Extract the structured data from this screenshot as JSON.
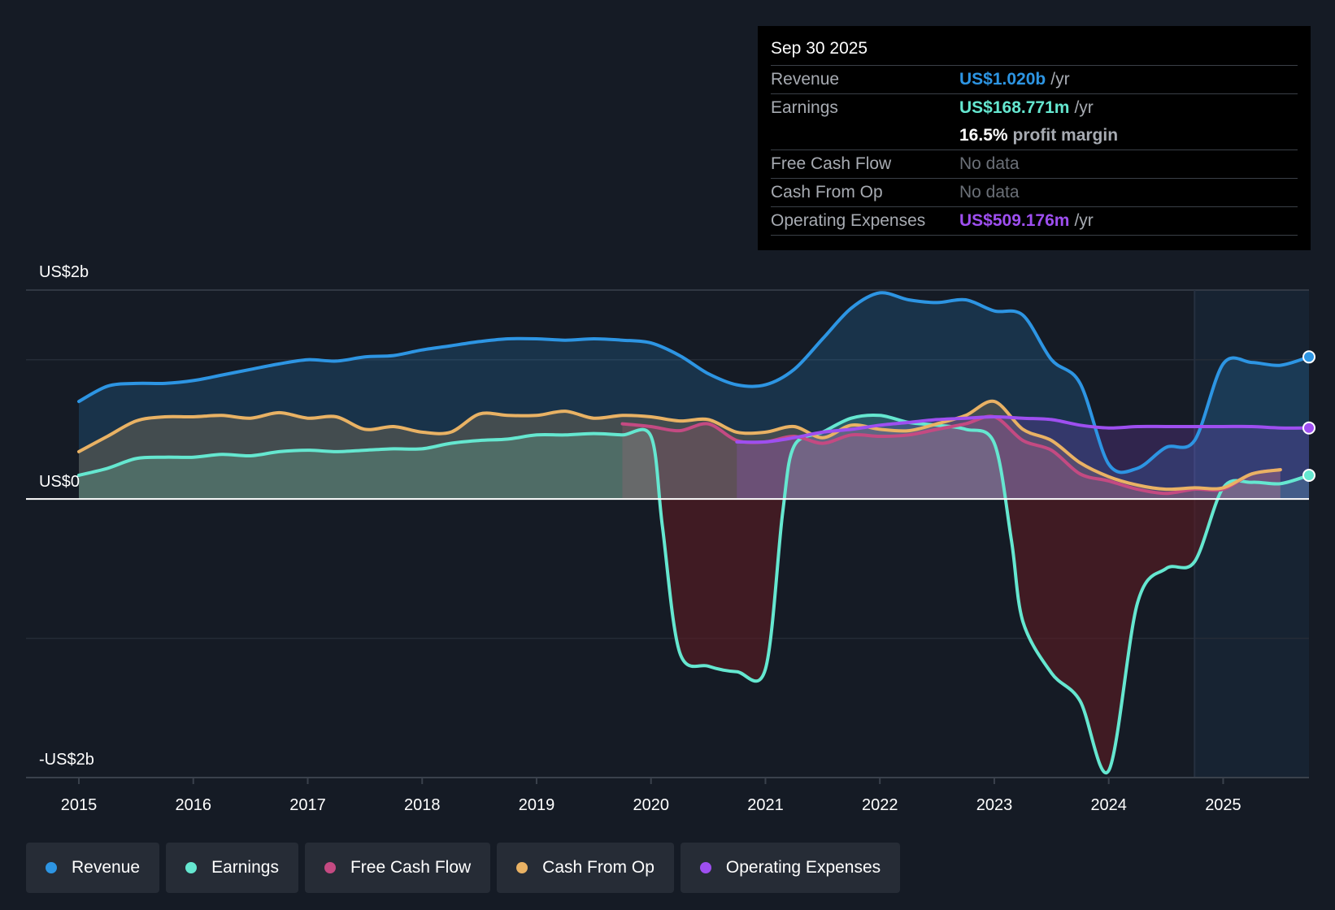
{
  "chart_data": {
    "type": "area",
    "title": "",
    "y_axis": {
      "top_label": "US$2b",
      "zero_label": "US$0",
      "bottom_label": "-US$2b",
      "ylim": [
        -2.0,
        1.5
      ]
    },
    "x_ticks": [
      "2015",
      "2016",
      "2017",
      "2018",
      "2019",
      "2020",
      "2021",
      "2022",
      "2023",
      "2024",
      "2025"
    ],
    "xlim": [
      2015.0,
      2025.75
    ],
    "forecast_start": 2024.75,
    "series": [
      {
        "name": "Revenue",
        "color": "#2d95e3",
        "fill": true,
        "points": [
          [
            2015,
            0.7
          ],
          [
            2015.25,
            0.81
          ],
          [
            2015.5,
            0.83
          ],
          [
            2015.75,
            0.83
          ],
          [
            2016,
            0.85
          ],
          [
            2016.25,
            0.89
          ],
          [
            2016.5,
            0.93
          ],
          [
            2016.75,
            0.97
          ],
          [
            2017,
            1.0
          ],
          [
            2017.25,
            0.99
          ],
          [
            2017.5,
            1.02
          ],
          [
            2017.75,
            1.03
          ],
          [
            2018,
            1.07
          ],
          [
            2018.25,
            1.1
          ],
          [
            2018.5,
            1.13
          ],
          [
            2018.75,
            1.15
          ],
          [
            2019,
            1.15
          ],
          [
            2019.25,
            1.14
          ],
          [
            2019.5,
            1.15
          ],
          [
            2019.75,
            1.14
          ],
          [
            2020,
            1.12
          ],
          [
            2020.25,
            1.03
          ],
          [
            2020.5,
            0.9
          ],
          [
            2020.75,
            0.82
          ],
          [
            2021,
            0.82
          ],
          [
            2021.25,
            0.93
          ],
          [
            2021.5,
            1.15
          ],
          [
            2021.75,
            1.37
          ],
          [
            2022,
            1.48
          ],
          [
            2022.25,
            1.43
          ],
          [
            2022.5,
            1.41
          ],
          [
            2022.75,
            1.43
          ],
          [
            2023,
            1.35
          ],
          [
            2023.25,
            1.32
          ],
          [
            2023.5,
            1.0
          ],
          [
            2023.75,
            0.83
          ],
          [
            2024,
            0.25
          ],
          [
            2024.25,
            0.22
          ],
          [
            2024.5,
            0.37
          ],
          [
            2024.75,
            0.42
          ],
          [
            2025,
            0.97
          ],
          [
            2025.25,
            0.98
          ],
          [
            2025.5,
            0.96
          ],
          [
            2025.75,
            1.02
          ]
        ]
      },
      {
        "name": "Earnings",
        "color": "#65e7d0",
        "fill": true,
        "points": [
          [
            2015,
            0.17
          ],
          [
            2015.25,
            0.22
          ],
          [
            2015.5,
            0.29
          ],
          [
            2015.75,
            0.3
          ],
          [
            2016,
            0.3
          ],
          [
            2016.25,
            0.32
          ],
          [
            2016.5,
            0.31
          ],
          [
            2016.75,
            0.34
          ],
          [
            2017,
            0.35
          ],
          [
            2017.25,
            0.34
          ],
          [
            2017.5,
            0.35
          ],
          [
            2017.75,
            0.36
          ],
          [
            2018,
            0.36
          ],
          [
            2018.25,
            0.4
          ],
          [
            2018.5,
            0.42
          ],
          [
            2018.75,
            0.43
          ],
          [
            2019,
            0.46
          ],
          [
            2019.25,
            0.46
          ],
          [
            2019.5,
            0.47
          ],
          [
            2019.75,
            0.46
          ],
          [
            2020,
            0.45
          ],
          [
            2020.1,
            -0.2
          ],
          [
            2020.25,
            -1.1
          ],
          [
            2020.5,
            -1.2
          ],
          [
            2020.75,
            -1.24
          ],
          [
            2021,
            -1.22
          ],
          [
            2021.15,
            -0.1
          ],
          [
            2021.25,
            0.38
          ],
          [
            2021.5,
            0.48
          ],
          [
            2021.75,
            0.58
          ],
          [
            2022,
            0.6
          ],
          [
            2022.25,
            0.55
          ],
          [
            2022.5,
            0.53
          ],
          [
            2022.75,
            0.5
          ],
          [
            2023,
            0.4
          ],
          [
            2023.15,
            -0.3
          ],
          [
            2023.25,
            -0.88
          ],
          [
            2023.5,
            -1.25
          ],
          [
            2023.75,
            -1.45
          ],
          [
            2024,
            -1.95
          ],
          [
            2024.25,
            -0.75
          ],
          [
            2024.5,
            -0.5
          ],
          [
            2024.75,
            -0.45
          ],
          [
            2025,
            0.08
          ],
          [
            2025.25,
            0.12
          ],
          [
            2025.5,
            0.11
          ],
          [
            2025.75,
            0.17
          ]
        ]
      },
      {
        "name": "Free Cash Flow",
        "color": "#c44a82",
        "fill": true,
        "points": [
          [
            2019.75,
            0.54
          ],
          [
            2020,
            0.52
          ],
          [
            2020.25,
            0.49
          ],
          [
            2020.5,
            0.54
          ],
          [
            2020.75,
            0.42
          ],
          [
            2021,
            0.41
          ],
          [
            2021.25,
            0.45
          ],
          [
            2021.5,
            0.4
          ],
          [
            2021.75,
            0.46
          ],
          [
            2022,
            0.45
          ],
          [
            2022.25,
            0.46
          ],
          [
            2022.5,
            0.5
          ],
          [
            2022.75,
            0.54
          ],
          [
            2023,
            0.59
          ],
          [
            2023.25,
            0.42
          ],
          [
            2023.5,
            0.35
          ],
          [
            2023.75,
            0.18
          ],
          [
            2024,
            0.13
          ],
          [
            2024.25,
            0.07
          ],
          [
            2024.5,
            0.04
          ],
          [
            2024.75,
            0.07
          ],
          [
            2025,
            0.07
          ],
          [
            2025.25,
            0.18
          ],
          [
            2025.5,
            0.21
          ]
        ]
      },
      {
        "name": "Cash From Op",
        "color": "#e9b264",
        "fill": true,
        "points": [
          [
            2015,
            0.34
          ],
          [
            2015.25,
            0.45
          ],
          [
            2015.5,
            0.56
          ],
          [
            2015.75,
            0.59
          ],
          [
            2016,
            0.59
          ],
          [
            2016.25,
            0.6
          ],
          [
            2016.5,
            0.58
          ],
          [
            2016.75,
            0.62
          ],
          [
            2017,
            0.58
          ],
          [
            2017.25,
            0.59
          ],
          [
            2017.5,
            0.5
          ],
          [
            2017.75,
            0.52
          ],
          [
            2018,
            0.48
          ],
          [
            2018.25,
            0.48
          ],
          [
            2018.5,
            0.61
          ],
          [
            2018.75,
            0.6
          ],
          [
            2019,
            0.6
          ],
          [
            2019.25,
            0.63
          ],
          [
            2019.5,
            0.58
          ],
          [
            2019.75,
            0.6
          ],
          [
            2020,
            0.59
          ],
          [
            2020.25,
            0.56
          ],
          [
            2020.5,
            0.57
          ],
          [
            2020.75,
            0.48
          ],
          [
            2021,
            0.48
          ],
          [
            2021.25,
            0.52
          ],
          [
            2021.5,
            0.44
          ],
          [
            2021.75,
            0.53
          ],
          [
            2022,
            0.5
          ],
          [
            2022.25,
            0.49
          ],
          [
            2022.5,
            0.54
          ],
          [
            2022.75,
            0.6
          ],
          [
            2023,
            0.7
          ],
          [
            2023.25,
            0.5
          ],
          [
            2023.5,
            0.42
          ],
          [
            2023.75,
            0.26
          ],
          [
            2024,
            0.16
          ],
          [
            2024.25,
            0.1
          ],
          [
            2024.5,
            0.07
          ],
          [
            2024.75,
            0.08
          ],
          [
            2025,
            0.08
          ],
          [
            2025.25,
            0.18
          ],
          [
            2025.5,
            0.21
          ]
        ]
      },
      {
        "name": "Operating Expenses",
        "color": "#9e4ff0",
        "fill": true,
        "points": [
          [
            2020.75,
            0.41
          ],
          [
            2021,
            0.41
          ],
          [
            2021.25,
            0.44
          ],
          [
            2021.5,
            0.48
          ],
          [
            2021.75,
            0.5
          ],
          [
            2022,
            0.53
          ],
          [
            2022.25,
            0.55
          ],
          [
            2022.5,
            0.57
          ],
          [
            2022.75,
            0.58
          ],
          [
            2023,
            0.59
          ],
          [
            2023.25,
            0.58
          ],
          [
            2023.5,
            0.57
          ],
          [
            2023.75,
            0.53
          ],
          [
            2024,
            0.51
          ],
          [
            2024.25,
            0.52
          ],
          [
            2024.5,
            0.52
          ],
          [
            2024.75,
            0.52
          ],
          [
            2025,
            0.52
          ],
          [
            2025.25,
            0.52
          ],
          [
            2025.5,
            0.51
          ],
          [
            2025.75,
            0.51
          ]
        ]
      }
    ],
    "end_markers": [
      "Revenue",
      "Earnings",
      "Operating Expenses"
    ]
  },
  "tooltip": {
    "date": "Sep 30 2025",
    "revenue": {
      "label": "Revenue",
      "value": "US$1.020b",
      "unit": "/yr",
      "color": "#2d95e3"
    },
    "earnings": {
      "label": "Earnings",
      "value": "US$168.771m",
      "unit": "/yr",
      "color": "#65e7d0"
    },
    "margin": {
      "value": "16.5%",
      "text": "profit margin"
    },
    "fcf": {
      "label": "Free Cash Flow",
      "value": "No data"
    },
    "cfo": {
      "label": "Cash From Op",
      "value": "No data"
    },
    "opex": {
      "label": "Operating Expenses",
      "value": "US$509.176m",
      "unit": "/yr",
      "color": "#9e4ff0"
    }
  },
  "legend": [
    {
      "label": "Revenue",
      "color": "#2d95e3"
    },
    {
      "label": "Earnings",
      "color": "#65e7d0"
    },
    {
      "label": "Free Cash Flow",
      "color": "#c44a82"
    },
    {
      "label": "Cash From Op",
      "color": "#e9b264"
    },
    {
      "label": "Operating Expenses",
      "color": "#9e4ff0"
    }
  ]
}
